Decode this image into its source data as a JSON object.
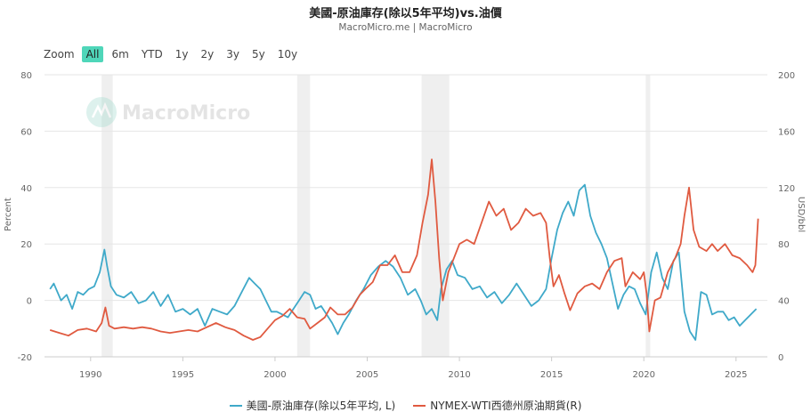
{
  "header": {
    "title": "美國-原油庫存(除以5年平均)vs.油價",
    "subtitle": "MacroMicro.me | MacroMicro"
  },
  "watermark": {
    "text": "MacroMicro"
  },
  "zoom": {
    "label": "Zoom",
    "buttons": [
      "All",
      "6m",
      "YTD",
      "1y",
      "2y",
      "3y",
      "5y",
      "10y"
    ],
    "active": "All"
  },
  "legend": {
    "items": [
      {
        "label": "美國-原油庫存(除以5年平均, L)",
        "color": "#3fa9c9"
      },
      {
        "label": "NYMEX-WTI西德州原油期貨(R)",
        "color": "#e05a40"
      }
    ]
  },
  "chart_data": {
    "type": "line",
    "ylabel_left": "Percent",
    "ylabel_right": "USD/bbl",
    "y_left_ticks": [
      -20,
      0,
      20,
      40,
      60,
      80
    ],
    "y_right_ticks": [
      0,
      40,
      80,
      120,
      160,
      200
    ],
    "x_ticks": [
      1990,
      1995,
      2000,
      2005,
      2010,
      2015,
      2020,
      2025
    ],
    "ylim_left": [
      -20,
      80
    ],
    "ylim_right": [
      0,
      200
    ],
    "xlim": [
      1987.5,
      2026.7
    ],
    "grid": "horizontal",
    "recession_bands": [
      [
        1990.6,
        1991.2
      ],
      [
        2001.2,
        2001.9
      ],
      [
        2007.95,
        2009.45
      ],
      [
        2020.1,
        2020.35
      ]
    ],
    "series": [
      {
        "name": "美國-原油庫存(除以5年平均, L)",
        "axis": "left",
        "color": "#3fa9c9",
        "x": [
          1987.8,
          1988.0,
          1988.4,
          1988.7,
          1989.0,
          1989.3,
          1989.6,
          1989.9,
          1990.2,
          1990.5,
          1990.75,
          1990.9,
          1991.1,
          1991.4,
          1991.8,
          1992.2,
          1992.6,
          1993.0,
          1993.4,
          1993.8,
          1994.2,
          1994.6,
          1995.0,
          1995.4,
          1995.8,
          1996.2,
          1996.6,
          1997.0,
          1997.4,
          1997.8,
          1998.2,
          1998.6,
          1998.9,
          1999.2,
          1999.5,
          1999.8,
          2000.1,
          2000.4,
          2000.7,
          2001.0,
          2001.3,
          2001.6,
          2001.9,
          2002.2,
          2002.5,
          2002.8,
          2003.1,
          2003.4,
          2003.7,
          2004.0,
          2004.4,
          2004.8,
          2005.2,
          2005.6,
          2006.0,
          2006.4,
          2006.8,
          2007.2,
          2007.6,
          2007.9,
          2008.2,
          2008.5,
          2008.8,
          2009.0,
          2009.3,
          2009.6,
          2009.9,
          2010.3,
          2010.7,
          2011.1,
          2011.5,
          2011.9,
          2012.3,
          2012.7,
          2013.1,
          2013.5,
          2013.9,
          2014.3,
          2014.7,
          2015.0,
          2015.3,
          2015.6,
          2015.9,
          2016.2,
          2016.5,
          2016.8,
          2017.1,
          2017.4,
          2017.7,
          2018.0,
          2018.3,
          2018.6,
          2018.9,
          2019.2,
          2019.5,
          2019.8,
          2020.1,
          2020.4,
          2020.7,
          2021.0,
          2021.3,
          2021.6,
          2021.9,
          2022.2,
          2022.5,
          2022.8,
          2023.1,
          2023.4,
          2023.7,
          2024.0,
          2024.3,
          2024.6,
          2024.9,
          2025.2,
          2025.5,
          2025.8,
          2026.1
        ],
        "values": [
          4,
          6,
          0,
          2,
          -3,
          3,
          2,
          4,
          5,
          10,
          18,
          12,
          5,
          2,
          1,
          3,
          -1,
          0,
          3,
          -2,
          2,
          -4,
          -3,
          -5,
          -3,
          -9,
          -3,
          -4,
          -5,
          -2,
          3,
          8,
          6,
          4,
          0,
          -4,
          -4,
          -5,
          -6,
          -3,
          0,
          3,
          2,
          -3,
          -2,
          -5,
          -8,
          -12,
          -8,
          -5,
          0,
          4,
          9,
          12,
          14,
          12,
          8,
          2,
          4,
          0,
          -5,
          -3,
          -7,
          4,
          11,
          14,
          9,
          8,
          4,
          5,
          1,
          3,
          -1,
          2,
          6,
          2,
          -2,
          0,
          4,
          15,
          25,
          31,
          35,
          30,
          39,
          41,
          30,
          24,
          20,
          15,
          6,
          -3,
          2,
          5,
          4,
          -1,
          -5,
          10,
          17,
          8,
          4,
          14,
          17,
          -4,
          -11,
          -14,
          3,
          2,
          -5,
          -4,
          -4,
          -7,
          -6,
          -9,
          -7,
          -5,
          -3
        ]
      },
      {
        "name": "NYMEX-WTI西德州原油期貨(R)",
        "axis": "right",
        "color": "#e05a40",
        "x": [
          1987.8,
          1988.3,
          1988.8,
          1989.3,
          1989.8,
          1990.3,
          1990.6,
          1990.8,
          1991.0,
          1991.3,
          1991.8,
          1992.3,
          1992.8,
          1993.3,
          1993.8,
          1994.3,
          1994.8,
          1995.3,
          1995.8,
          1996.3,
          1996.8,
          1997.3,
          1997.8,
          1998.3,
          1998.8,
          1999.2,
          1999.6,
          2000.0,
          2000.4,
          2000.8,
          2001.2,
          2001.6,
          2001.9,
          2002.3,
          2002.7,
          2003.0,
          2003.4,
          2003.8,
          2004.2,
          2004.6,
          2004.9,
          2005.3,
          2005.7,
          2006.1,
          2006.5,
          2006.9,
          2007.3,
          2007.7,
          2008.0,
          2008.3,
          2008.5,
          2008.7,
          2008.9,
          2009.1,
          2009.4,
          2009.7,
          2010.0,
          2010.4,
          2010.8,
          2011.2,
          2011.6,
          2012.0,
          2012.4,
          2012.8,
          2013.2,
          2013.6,
          2014.0,
          2014.4,
          2014.7,
          2014.9,
          2015.1,
          2015.4,
          2015.7,
          2016.0,
          2016.4,
          2016.8,
          2017.2,
          2017.6,
          2018.0,
          2018.4,
          2018.8,
          2019.0,
          2019.4,
          2019.8,
          2020.0,
          2020.15,
          2020.3,
          2020.6,
          2020.9,
          2021.3,
          2021.7,
          2022.0,
          2022.2,
          2022.45,
          2022.7,
          2023.0,
          2023.4,
          2023.7,
          2024.0,
          2024.4,
          2024.8,
          2025.2,
          2025.6,
          2025.9,
          2026.05,
          2026.2
        ],
        "values": [
          19,
          17,
          15,
          19,
          20,
          18,
          24,
          35,
          22,
          20,
          21,
          20,
          21,
          20,
          18,
          17,
          18,
          19,
          18,
          21,
          24,
          21,
          19,
          15,
          12,
          14,
          20,
          26,
          29,
          34,
          28,
          27,
          20,
          24,
          28,
          35,
          30,
          30,
          35,
          44,
          48,
          53,
          65,
          65,
          72,
          60,
          60,
          72,
          95,
          115,
          140,
          110,
          70,
          40,
          60,
          70,
          80,
          83,
          80,
          95,
          110,
          100,
          105,
          90,
          95,
          105,
          100,
          102,
          95,
          70,
          50,
          58,
          45,
          33,
          45,
          50,
          52,
          48,
          60,
          68,
          70,
          50,
          60,
          55,
          60,
          45,
          18,
          40,
          42,
          60,
          70,
          80,
          100,
          120,
          90,
          78,
          75,
          80,
          75,
          80,
          72,
          70,
          65,
          60,
          65,
          98
        ]
      }
    ]
  }
}
